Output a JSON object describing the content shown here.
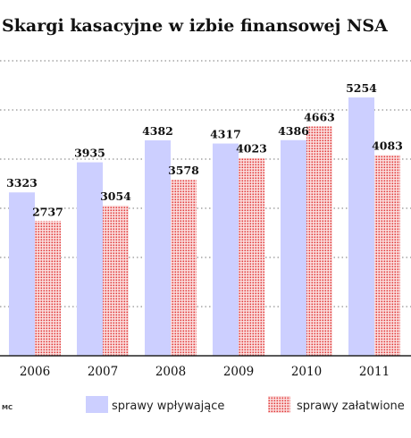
{
  "title": "Skargi kasacyjne w izbie finansowej NSA",
  "credit": "MC",
  "colors": {
    "received": "#cccfff",
    "resolved": "#e23a3a"
  },
  "chart_data": {
    "type": "bar",
    "title": "Skargi kasacyjne w izbie finansowej NSA",
    "categories": [
      "2006",
      "2007",
      "2008",
      "2009",
      "2010",
      "2011"
    ],
    "series": [
      {
        "name": "sprawy wpływające",
        "values": [
          3323,
          3935,
          4382,
          4317,
          4386,
          5254
        ]
      },
      {
        "name": "sprawy załatwione",
        "values": [
          2737,
          3054,
          3578,
          4023,
          4663,
          4083
        ]
      }
    ],
    "ylim": [
      0,
      6000
    ],
    "grid": true,
    "legend": "bottom"
  }
}
